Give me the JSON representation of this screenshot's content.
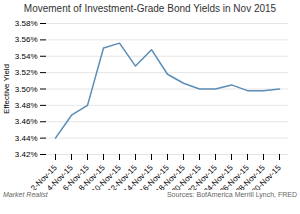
{
  "chart_data": {
    "type": "line",
    "title": "Movement of Investment-Grade Bond Yields in Nov 2015",
    "ylabel": "Effective Yield",
    "annotations": [
      "Market Realist",
      "Sources: BofAmerica Merrill Lynch, FRED"
    ],
    "categories": [
      "2-Nov-15",
      "4-Nov-15",
      "6-Nov-15",
      "8-Nov-15",
      "10-Nov-15",
      "12-Nov-15",
      "14-Nov-15",
      "16-Nov-15",
      "18-Nov-15",
      "20-Nov-15",
      "22-Nov-15",
      "24-Nov-15",
      "26-Nov-15",
      "28-Nov-15",
      "30-Nov-15"
    ],
    "values": [
      3.44,
      3.468,
      3.48,
      3.55,
      3.556,
      3.528,
      3.548,
      3.518,
      3.507,
      3.5,
      3.5,
      3.505,
      3.498,
      3.498,
      3.5
    ],
    "color": "#5b8db8",
    "ylim": [
      3.42,
      3.58
    ],
    "yticks": [
      {
        "value": 3.42,
        "label": "3.42%"
      },
      {
        "value": 3.44,
        "label": "3.44%"
      },
      {
        "value": 3.46,
        "label": "3.46%"
      },
      {
        "value": 3.48,
        "label": "3.48%"
      },
      {
        "value": 3.5,
        "label": "3.50%"
      },
      {
        "value": 3.52,
        "label": "3.52%"
      },
      {
        "value": 3.54,
        "label": "3.54%"
      },
      {
        "value": 3.56,
        "label": "3.56%"
      },
      {
        "value": 3.58,
        "label": "3.58%"
      }
    ],
    "grid": true
  }
}
